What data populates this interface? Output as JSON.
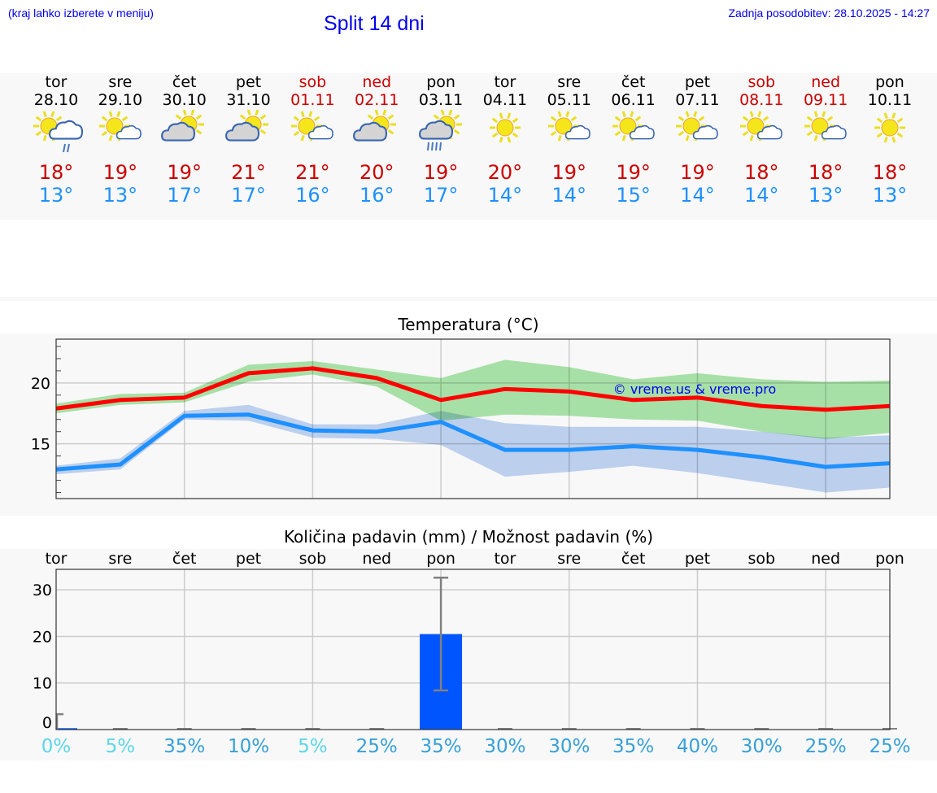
{
  "header": {
    "hint": "(kraj lahko izberete v meniju)",
    "title": "Split 14 dni",
    "updated": "Zadnja posodobitev: 28.10.2025 - 14:27"
  },
  "colors": {
    "max": "#cc0000",
    "min": "#1e90ff",
    "maxLine": "#ff0000",
    "maxBand": "#a8e6a8",
    "minBand": "#a9c4f0",
    "bar": "#0055ff",
    "pctLow": "#5cd6e8",
    "pctHigh": "#36a0d8",
    "weekend": "#cc0000"
  },
  "days": [
    {
      "name": "tor",
      "date": "28.10",
      "icon": "sun-cloud-light-rain",
      "max": "18°",
      "min": "13°",
      "weekend": false
    },
    {
      "name": "sre",
      "date": "29.10",
      "icon": "sun-small-cloud",
      "max": "19°",
      "min": "13°",
      "weekend": false
    },
    {
      "name": "čet",
      "date": "30.10",
      "icon": "cloud-sun",
      "max": "19°",
      "min": "17°",
      "weekend": false
    },
    {
      "name": "pet",
      "date": "31.10",
      "icon": "cloud-sun",
      "max": "21°",
      "min": "17°",
      "weekend": false
    },
    {
      "name": "sob",
      "date": "01.11",
      "icon": "sun-small-cloud",
      "max": "21°",
      "min": "16°",
      "weekend": true
    },
    {
      "name": "ned",
      "date": "02.11",
      "icon": "cloud-sun",
      "max": "20°",
      "min": "16°",
      "weekend": true
    },
    {
      "name": "pon",
      "date": "03.11",
      "icon": "cloud-sun-rain",
      "max": "19°",
      "min": "17°",
      "weekend": false
    },
    {
      "name": "tor",
      "date": "04.11",
      "icon": "sun",
      "max": "20°",
      "min": "14°",
      "weekend": false
    },
    {
      "name": "sre",
      "date": "05.11",
      "icon": "sun-small-cloud",
      "max": "19°",
      "min": "14°",
      "weekend": false
    },
    {
      "name": "čet",
      "date": "06.11",
      "icon": "sun-small-cloud",
      "max": "19°",
      "min": "15°",
      "weekend": false
    },
    {
      "name": "pet",
      "date": "07.11",
      "icon": "sun-small-cloud",
      "max": "19°",
      "min": "14°",
      "weekend": false
    },
    {
      "name": "sob",
      "date": "08.11",
      "icon": "sun-small-cloud",
      "max": "18°",
      "min": "14°",
      "weekend": true
    },
    {
      "name": "ned",
      "date": "09.11",
      "icon": "sun-small-cloud",
      "max": "18°",
      "min": "13°",
      "weekend": true
    },
    {
      "name": "pon",
      "date": "10.11",
      "icon": "sun",
      "max": "18°",
      "min": "13°",
      "weekend": false
    }
  ],
  "chart_data": [
    {
      "type": "line",
      "title": "Temperatura (°C)",
      "watermark": "© vreme.us & vreme.pro",
      "ylim": [
        10.5,
        23.6
      ],
      "yticks": [
        "15",
        "20"
      ],
      "ytick_values": [
        15,
        20
      ],
      "grid": true,
      "series": [
        {
          "name": "max",
          "values": [
            17.9,
            18.6,
            18.8,
            20.8,
            21.2,
            20.4,
            18.6,
            19.5,
            19.3,
            18.6,
            18.8,
            18.1,
            17.8,
            18.1
          ],
          "band_upper": [
            18.3,
            19.1,
            19.2,
            21.5,
            21.8,
            21.1,
            20.4,
            21.9,
            21.3,
            20.3,
            20.8,
            20.3,
            20.1,
            20.2
          ],
          "band_lower": [
            17.5,
            18.2,
            18.4,
            20.1,
            20.7,
            19.7,
            16.9,
            17.4,
            17.3,
            17.0,
            16.9,
            16.0,
            15.4,
            15.9
          ]
        },
        {
          "name": "min",
          "values": [
            12.9,
            13.3,
            17.3,
            17.4,
            16.1,
            16.0,
            16.8,
            14.5,
            14.5,
            14.8,
            14.5,
            13.9,
            13.1,
            13.4
          ],
          "band_upper": [
            13.2,
            13.8,
            17.7,
            18.2,
            16.6,
            16.6,
            17.7,
            16.7,
            16.4,
            16.4,
            16.4,
            16.0,
            15.5,
            15.7
          ],
          "band_lower": [
            12.5,
            12.9,
            17.0,
            16.9,
            15.5,
            15.4,
            14.9,
            12.3,
            12.7,
            13.2,
            12.6,
            11.8,
            11.0,
            11.4
          ]
        }
      ]
    },
    {
      "type": "bar",
      "title": "Količina padavin (mm) / Možnost padavin (%)",
      "categories": [
        "tor",
        "sre",
        "čet",
        "pet",
        "sob",
        "ned",
        "pon",
        "tor",
        "sre",
        "čet",
        "pet",
        "sob",
        "ned",
        "pon"
      ],
      "values": [
        0.3,
        0,
        0,
        0,
        0,
        0,
        20.5,
        0,
        0,
        0,
        0,
        0,
        0,
        0
      ],
      "error_upper": [
        3.3,
        0,
        0,
        0,
        0,
        0,
        32.6,
        0,
        0,
        0,
        0,
        0,
        0,
        0
      ],
      "error_lower": [
        0,
        0,
        0,
        0,
        0,
        0,
        8.4,
        0,
        0,
        0,
        0,
        0,
        0,
        0
      ],
      "probability": [
        "0%",
        "5%",
        "35%",
        "10%",
        "5%",
        "25%",
        "35%",
        "30%",
        "30%",
        "35%",
        "40%",
        "30%",
        "25%",
        "25%"
      ],
      "ylim": [
        0,
        34.4
      ],
      "yticks": [
        "0",
        "10",
        "20",
        "30"
      ],
      "ytick_values": [
        0,
        10,
        20,
        30
      ],
      "grid": true
    }
  ]
}
